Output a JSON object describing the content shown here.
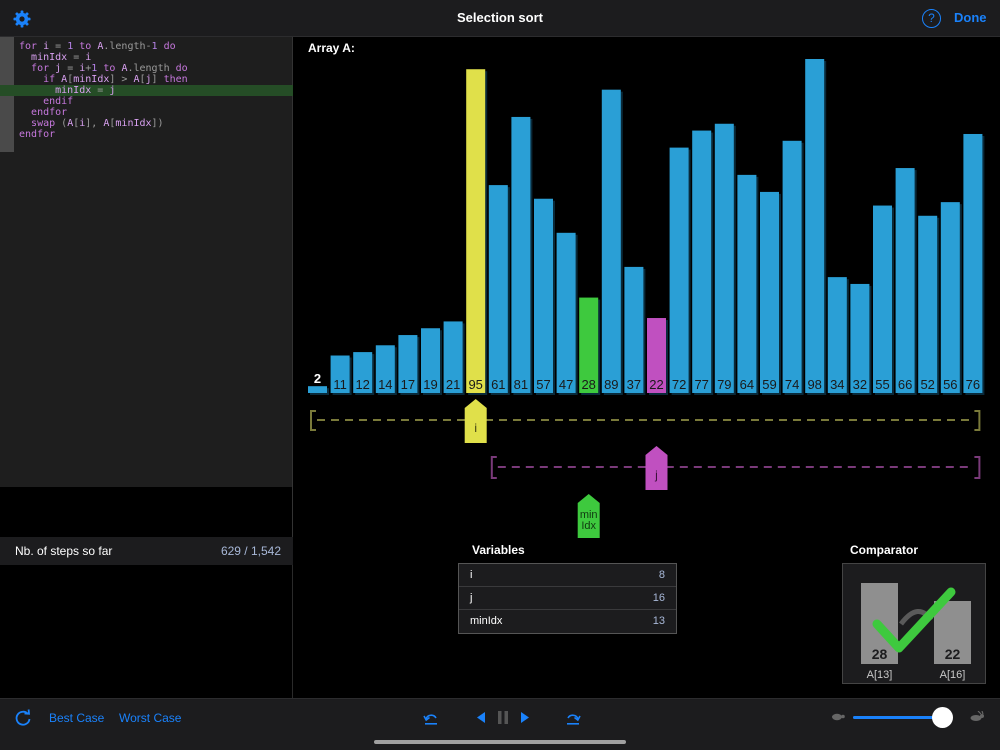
{
  "window": {
    "title": "Selection sort",
    "done_label": "Done",
    "help_label": "?"
  },
  "code_lines": [
    "for i = 1 to A.length-1 do",
    "  minIdx = i",
    "  for j = i+1 to A.length do",
    "    if A[minIdx] > A[j] then",
    "      minIdx = j",
    "    endif",
    "  endfor",
    "  swap (A[i], A[minIdx])",
    "endfor"
  ],
  "highlighted_line": 4,
  "steps": {
    "label": "Nb. of steps so far",
    "value": "629 / 1,542"
  },
  "array_label": "Array A:",
  "chart_data": {
    "type": "bar",
    "values": [
      2,
      11,
      12,
      14,
      17,
      19,
      21,
      95,
      61,
      81,
      57,
      47,
      28,
      89,
      37,
      22,
      72,
      77,
      79,
      64,
      59,
      74,
      98,
      34,
      32,
      55,
      66,
      52,
      56,
      76
    ],
    "highlight": {
      "i": 7,
      "minIdx": 12,
      "j": 15
    },
    "colors": {
      "bar": "#2a9fd6",
      "i": "#e0e04a",
      "minIdx": "#3ec93e",
      "j": "#c050c0"
    }
  },
  "markers": {
    "i_label": "i",
    "j_label": "j",
    "minidx_label_1": "min",
    "minidx_label_2": "Idx"
  },
  "variables": {
    "title": "Variables",
    "rows": [
      {
        "name": "i",
        "value": "8"
      },
      {
        "name": "j",
        "value": "16"
      },
      {
        "name": "minIdx",
        "value": "13"
      }
    ]
  },
  "comparator": {
    "title": "Comparator",
    "left_value": "28",
    "left_label": "A[13]",
    "right_value": "22",
    "right_label": "A[16]"
  },
  "bottom": {
    "best_case": "Best Case",
    "worst_case": "Worst Case"
  },
  "accent": "#1a82fb"
}
